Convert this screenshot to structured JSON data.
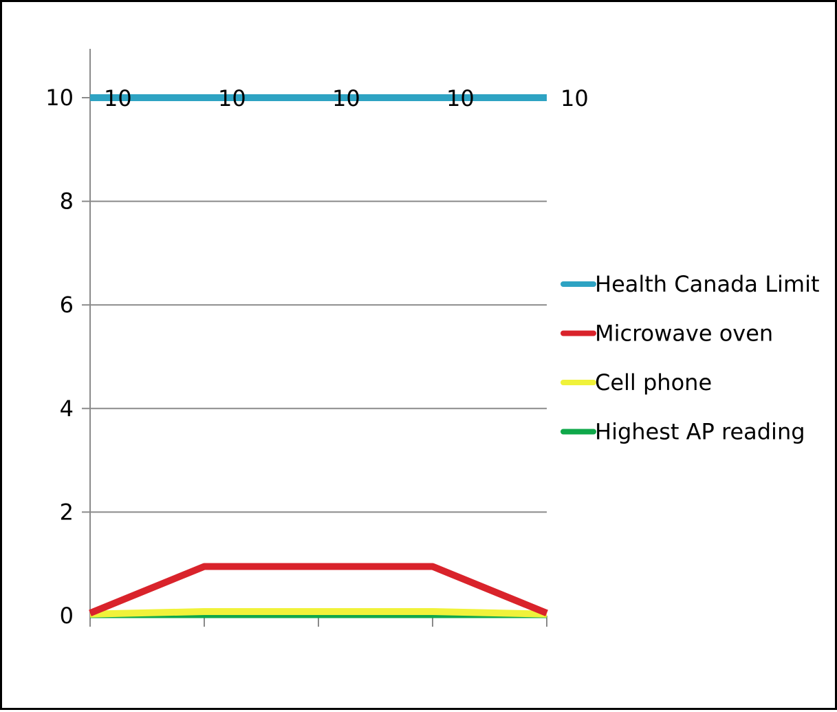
{
  "chart_data": {
    "type": "line",
    "title": "",
    "xlabel": "",
    "ylabel": "",
    "x": [
      1,
      2,
      3,
      4,
      5
    ],
    "ylim": [
      0,
      11
    ],
    "yticks": [
      0,
      2,
      4,
      6,
      8,
      10
    ],
    "grid": true,
    "legend_position": "right",
    "series": [
      {
        "name": "Health Canada Limit",
        "color": "#2ea3c3",
        "values": [
          10,
          10,
          10,
          10,
          10
        ],
        "data_labels": [
          "10",
          "10",
          "10",
          "10",
          "10"
        ]
      },
      {
        "name": "Microwave oven",
        "color": "#d9232b",
        "values": [
          0.05,
          0.95,
          0.95,
          0.95,
          0.05
        ]
      },
      {
        "name": "Cell phone",
        "color": "#f0f23a",
        "values": [
          0.03,
          0.08,
          0.08,
          0.08,
          0.03
        ]
      },
      {
        "name": "Highest AP reading",
        "color": "#0fa84a",
        "values": [
          0.02,
          0.02,
          0.02,
          0.02,
          0.02
        ]
      }
    ]
  }
}
